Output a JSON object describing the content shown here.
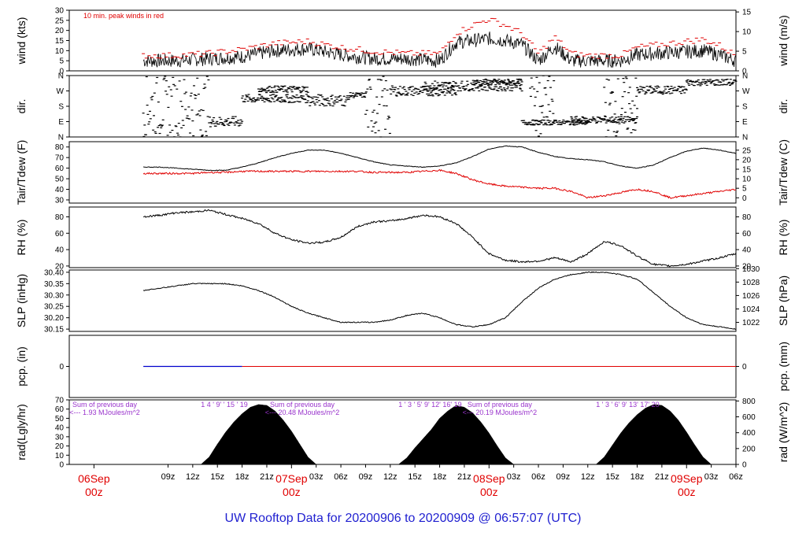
{
  "title": "UW Rooftop Data for 20200906  to  20200909 @ 06:57:07  (UTC)",
  "colors": {
    "main": "#000000",
    "peak": "#e00000",
    "dew": "#e00000",
    "precip_blue": "#0000cc",
    "precip_red": "#e00000",
    "sum": "#9933cc",
    "title": "#1f1fd0",
    "date": "#e00000"
  },
  "time_axis": {
    "range_hours": [
      -3,
      78
    ],
    "ticks": [
      "09z",
      "12z",
      "15z",
      "18z",
      "21z",
      "03z",
      "06z",
      "09z",
      "12z",
      "15z",
      "18z",
      "21z",
      "03z",
      "06z",
      "09z",
      "12z",
      "15z",
      "18z",
      "21z",
      "03z",
      "06z"
    ],
    "tick_hours": [
      9,
      12,
      15,
      18,
      21,
      27,
      30,
      33,
      36,
      39,
      42,
      45,
      51,
      54,
      57,
      60,
      63,
      66,
      69,
      75,
      78
    ],
    "date_markers": [
      {
        "day": "06Sep",
        "hour": "00z",
        "hour_value": 0
      },
      {
        "day": "07Sep",
        "hour": "00z",
        "hour_value": 24
      },
      {
        "day": "08Sep",
        "hour": "00z",
        "hour_value": 48
      },
      {
        "day": "09Sep",
        "hour": "00z",
        "hour_value": 72
      }
    ]
  },
  "chart_data": [
    {
      "type": "line",
      "panel": "wind",
      "ylabel_left": "wind (kts)",
      "ylabel_right": "wind (m/s)",
      "ylim": [
        0,
        30
      ],
      "yticks_left": [
        0,
        5,
        10,
        15,
        20,
        25,
        30
      ],
      "yticks_right": [
        0,
        5,
        10,
        15
      ],
      "annotation": "10 min. peak winds in red",
      "series": [
        {
          "x": [
            6,
            10,
            14,
            18,
            22,
            26,
            30,
            34,
            38,
            42,
            44,
            46,
            48,
            50,
            52,
            54,
            56,
            58,
            60,
            64,
            66,
            70,
            74,
            76,
            78
          ],
          "values": [
            5,
            5,
            6,
            7,
            10,
            11,
            8,
            6,
            6,
            5,
            14,
            15,
            16,
            15,
            13,
            5,
            12,
            5,
            5,
            5,
            8,
            9,
            10,
            8,
            5
          ]
        },
        {
          "x": [
            6,
            10,
            14,
            18,
            22,
            26,
            30,
            34,
            38,
            42,
            44,
            46,
            48,
            50,
            52,
            54,
            56,
            58,
            60,
            64,
            66,
            70,
            74,
            76,
            78
          ],
          "values": [
            7,
            7,
            8,
            10,
            13,
            14,
            11,
            9,
            8,
            8,
            18,
            22,
            25,
            22,
            18,
            8,
            16,
            8,
            7,
            7,
            11,
            13,
            15,
            12,
            7
          ]
        }
      ]
    },
    {
      "type": "scatter",
      "panel": "dir",
      "ylabel_left": "dir.",
      "ylabel_right": "dir.",
      "ylim": [
        0,
        360
      ],
      "ytick_labels": [
        "N",
        "E",
        "S",
        "W",
        "N"
      ],
      "yticks_values": [
        0,
        90,
        180,
        270,
        360
      ]
    },
    {
      "type": "line",
      "panel": "temp",
      "ylabel_left": "Tair/Tdew (F)",
      "ylabel_right": "Tair/Tdew (C)",
      "ylim": [
        27,
        85
      ],
      "yticks_left": [
        30,
        40,
        50,
        60,
        70,
        80
      ],
      "yticks_right_labels": [
        0,
        5,
        10,
        15,
        20,
        25
      ],
      "series": [
        {
          "x": [
            6,
            8,
            10,
            12,
            14,
            16,
            18,
            20,
            22,
            24,
            26,
            28,
            30,
            32,
            34,
            36,
            38,
            40,
            42,
            44,
            46,
            48,
            50,
            52,
            54,
            56,
            58,
            60,
            62,
            64,
            66,
            68,
            70,
            72,
            74,
            76,
            78
          ],
          "values": [
            61,
            61,
            60,
            59,
            58,
            58,
            61,
            65,
            70,
            74,
            77,
            77,
            74,
            70,
            66,
            63,
            62,
            61,
            62,
            65,
            71,
            78,
            81,
            80,
            75,
            71,
            69,
            68,
            66,
            62,
            60,
            63,
            70,
            76,
            79,
            77,
            74
          ]
        },
        {
          "x": [
            6,
            8,
            10,
            12,
            14,
            16,
            18,
            20,
            22,
            24,
            26,
            28,
            30,
            32,
            34,
            36,
            38,
            40,
            42,
            44,
            46,
            48,
            50,
            52,
            54,
            56,
            58,
            60,
            62,
            64,
            66,
            68,
            70,
            72,
            74,
            76,
            78
          ],
          "values": [
            55,
            55,
            55,
            55,
            56,
            56,
            57,
            57,
            57,
            57,
            57,
            57,
            57,
            57,
            56,
            56,
            56,
            57,
            58,
            55,
            49,
            45,
            43,
            42,
            41,
            41,
            38,
            32,
            34,
            37,
            40,
            38,
            32,
            34,
            36,
            38,
            40
          ]
        }
      ]
    },
    {
      "type": "line",
      "panel": "rh",
      "ylabel_left": "RH (%)",
      "ylabel_right": "RH (%)",
      "ylim": [
        18,
        92
      ],
      "yticks_left": [
        20,
        40,
        60,
        80
      ],
      "yticks_right": [
        20,
        40,
        60,
        80
      ],
      "series": [
        {
          "x": [
            6,
            8,
            10,
            12,
            14,
            16,
            18,
            20,
            22,
            24,
            26,
            28,
            30,
            32,
            34,
            36,
            38,
            40,
            42,
            44,
            46,
            48,
            50,
            52,
            54,
            56,
            58,
            60,
            62,
            64,
            66,
            68,
            70,
            72,
            74,
            76,
            78
          ],
          "values": [
            80,
            82,
            85,
            86,
            88,
            83,
            78,
            72,
            60,
            52,
            48,
            49,
            55,
            68,
            74,
            75,
            78,
            82,
            80,
            72,
            55,
            35,
            27,
            25,
            26,
            30,
            25,
            35,
            50,
            45,
            32,
            22,
            20,
            22,
            26,
            30,
            35
          ]
        }
      ]
    },
    {
      "type": "line",
      "panel": "slp",
      "ylabel_left": "SLP (inHg)",
      "ylabel_right": "SLP (hPa)",
      "ylim": [
        30.14,
        30.41
      ],
      "yticks_left": [
        30.15,
        30.2,
        30.25,
        30.3,
        30.35,
        30.4
      ],
      "yticks_right_labels": [
        1022,
        1024,
        1026,
        1028,
        1030
      ],
      "series": [
        {
          "x": [
            6,
            8,
            10,
            12,
            14,
            16,
            18,
            20,
            22,
            24,
            26,
            28,
            30,
            32,
            34,
            36,
            38,
            40,
            42,
            44,
            46,
            48,
            50,
            52,
            54,
            56,
            58,
            60,
            62,
            64,
            66,
            68,
            70,
            72,
            74,
            76,
            78
          ],
          "values": [
            30.32,
            30.33,
            30.34,
            30.35,
            30.35,
            30.35,
            30.34,
            30.32,
            30.29,
            30.25,
            30.22,
            30.2,
            30.18,
            30.18,
            30.18,
            30.19,
            30.21,
            30.22,
            30.2,
            30.17,
            30.16,
            30.17,
            30.2,
            30.27,
            30.33,
            30.37,
            30.39,
            30.4,
            30.4,
            30.39,
            30.37,
            30.31,
            30.25,
            30.2,
            30.17,
            30.16,
            30.15
          ]
        }
      ]
    },
    {
      "type": "line",
      "panel": "pcp",
      "ylabel_left": "pcp. (in)",
      "ylabel_right": "pcp. (mm)",
      "ytick_left": "0",
      "ytick_right": "0",
      "series": [
        {
          "x": [
            6,
            18
          ],
          "values": [
            0,
            0
          ]
        },
        {
          "x": [
            18,
            78
          ],
          "values": [
            0,
            0
          ]
        }
      ]
    },
    {
      "type": "area",
      "panel": "rad",
      "ylabel_left": "rad(Lgly/hr)",
      "ylabel_right": "rad (W/m^2)",
      "ylim": [
        0,
        70
      ],
      "yticks_left": [
        0,
        10,
        20,
        30,
        40,
        50,
        60,
        70
      ],
      "yticks_right_labels": [
        0,
        200,
        400,
        600,
        800
      ],
      "series": [
        {
          "x": [
            13,
            14,
            15,
            16,
            17,
            18,
            19,
            20,
            21,
            22,
            23,
            24,
            25,
            26,
            27
          ],
          "values": [
            0,
            8,
            22,
            35,
            46,
            55,
            62,
            65,
            64,
            58,
            48,
            36,
            22,
            8,
            0
          ]
        },
        {
          "x": [
            37,
            38,
            39,
            40,
            41,
            42,
            43,
            44,
            45,
            46,
            47,
            48,
            49,
            50,
            51
          ],
          "values": [
            0,
            7,
            18,
            28,
            38,
            50,
            58,
            64,
            62,
            56,
            46,
            34,
            20,
            7,
            0
          ]
        },
        {
          "x": [
            61,
            62,
            63,
            64,
            65,
            66,
            67,
            68,
            69,
            70,
            71,
            72,
            73,
            74,
            75
          ],
          "values": [
            0,
            8,
            21,
            34,
            45,
            54,
            61,
            65,
            64,
            58,
            48,
            35,
            21,
            8,
            0
          ]
        }
      ],
      "daily_sums": [
        {
          "line1": "Sum of previous day",
          "line2": "<--- 1.93 MJoules/m^2",
          "hours": "1  4 ' 9' ' 15 ' 19"
        },
        {
          "line1": "Sum of previous day",
          "line2": "<--- 20.48 MJoules/m^2",
          "hours": "1 ' 3 ' 5' 9' 12' 16' 19"
        },
        {
          "line1": "Sum of previous day",
          "line2": "<--- 20.19 MJoules/m^2",
          "hours": "1 ' 3 ' 6' 9' 13' 17' 20"
        }
      ]
    }
  ]
}
